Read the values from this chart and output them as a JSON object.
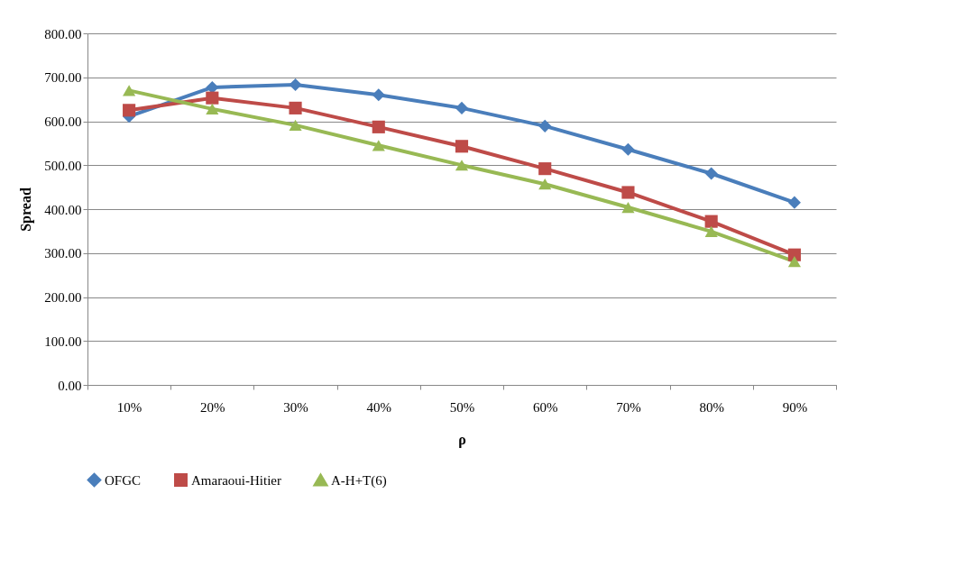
{
  "chart_data": {
    "type": "line",
    "xlabel": "ρ",
    "ylabel": "Spread",
    "categories": [
      "10%",
      "20%",
      "30%",
      "40%",
      "50%",
      "60%",
      "70%",
      "80%",
      "90%"
    ],
    "series": [
      {
        "name": "OFGC",
        "color": "#4a7ebb",
        "marker": "diamond",
        "values": [
          611,
          677,
          683,
          660,
          630,
          589,
          536,
          481,
          415
        ]
      },
      {
        "name": "Amaraoui-Hitier",
        "color": "#be4b48",
        "marker": "square",
        "values": [
          625,
          653,
          630,
          587,
          543,
          492,
          438,
          372,
          296
        ]
      },
      {
        "name": "A-H+T(6)",
        "color": "#98b954",
        "marker": "triangle",
        "values": [
          670,
          628,
          591,
          545,
          500,
          457,
          404,
          349,
          281
        ]
      }
    ],
    "ylim": [
      0,
      800
    ],
    "yticks": [
      {
        "value": 0,
        "label": "0.00"
      },
      {
        "value": 100,
        "label": "100.00"
      },
      {
        "value": 200,
        "label": "200.00"
      },
      {
        "value": 300,
        "label": "300.00"
      },
      {
        "value": 400,
        "label": "400.00"
      },
      {
        "value": 500,
        "label": "500.00"
      },
      {
        "value": 600,
        "label": "600.00"
      },
      {
        "value": 700,
        "label": "700.00"
      },
      {
        "value": 800,
        "label": "800.00"
      }
    ],
    "grid": "y",
    "legend": "bottom"
  }
}
